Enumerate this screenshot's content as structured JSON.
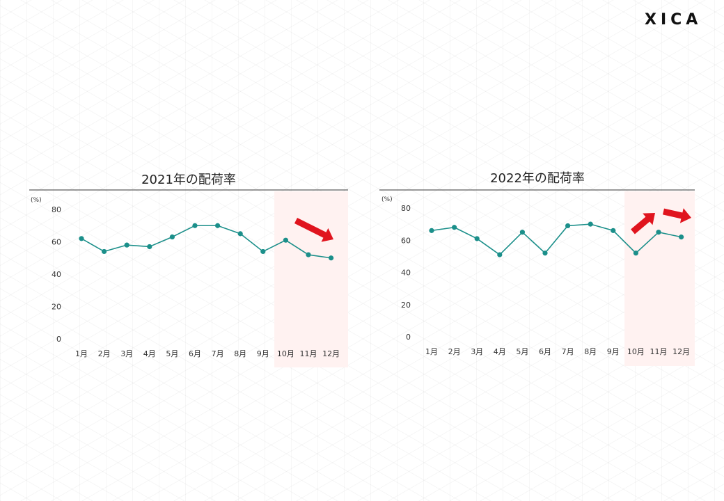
{
  "logo": {
    "text": "XICA"
  },
  "colors": {
    "line": "#1b8f8a",
    "highlight": "#fff2f1",
    "arrow": "#e0141e",
    "rule": "#333333"
  },
  "chart_data": [
    {
      "type": "line",
      "title": "2021年の配荷率",
      "unit": "(%)",
      "categories": [
        "1月",
        "2月",
        "3月",
        "4月",
        "5月",
        "6月",
        "7月",
        "8月",
        "9月",
        "10月",
        "11月",
        "12月"
      ],
      "values": [
        62,
        54,
        58,
        57,
        63,
        70,
        70,
        65,
        54,
        61,
        52,
        50
      ],
      "ylim": [
        0,
        80
      ],
      "yticks": [
        "0",
        "20",
        "40",
        "60",
        "80"
      ],
      "highlight_categories": [
        "10月",
        "11月",
        "12月"
      ],
      "annotation_arrows": [
        "down"
      ]
    },
    {
      "type": "line",
      "title": "2022年の配荷率",
      "unit": "(%)",
      "categories": [
        "1月",
        "2月",
        "3月",
        "4月",
        "5月",
        "6月",
        "7月",
        "8月",
        "9月",
        "10月",
        "11月",
        "12月"
      ],
      "values": [
        66,
        68,
        61,
        51,
        65,
        52,
        69,
        70,
        66,
        52,
        65,
        62
      ],
      "ylim": [
        0,
        80
      ],
      "yticks": [
        "0",
        "20",
        "40",
        "60",
        "80"
      ],
      "highlight_categories": [
        "10月",
        "11月",
        "12月"
      ],
      "annotation_arrows": [
        "up",
        "flat"
      ]
    }
  ]
}
